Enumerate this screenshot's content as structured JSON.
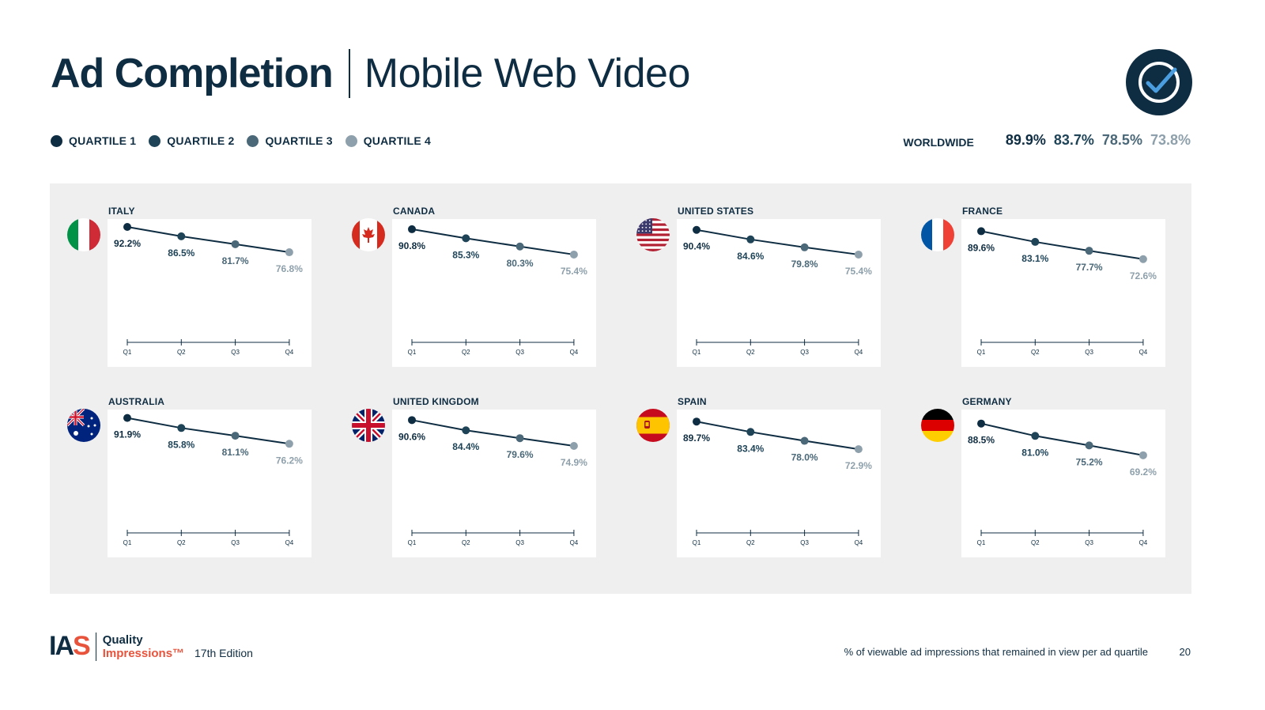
{
  "header": {
    "title_main": "Ad Completion",
    "title_sub": "Mobile Web Video"
  },
  "legend": [
    {
      "label": "QUARTILE 1",
      "color": "#0f2d42"
    },
    {
      "label": "QUARTILE 2",
      "color": "#1f4458"
    },
    {
      "label": "QUARTILE 3",
      "color": "#4b6878"
    },
    {
      "label": "QUARTILE 4",
      "color": "#8ea0ab"
    }
  ],
  "worldwide": {
    "label": "WORLDWIDE",
    "values": [
      "89.9%",
      "83.7%",
      "78.5%",
      "73.8%"
    ]
  },
  "chart_data": [
    {
      "type": "line",
      "title": "ITALY",
      "x": [
        "Q1",
        "Q2",
        "Q3",
        "Q4"
      ],
      "values": [
        92.2,
        86.5,
        81.7,
        76.8
      ],
      "labels": [
        "92.2%",
        "86.5%",
        "81.7%",
        "76.8%"
      ],
      "flag": "italy-flag"
    },
    {
      "type": "line",
      "title": "CANADA",
      "x": [
        "Q1",
        "Q2",
        "Q3",
        "Q4"
      ],
      "values": [
        90.8,
        85.3,
        80.3,
        75.4
      ],
      "labels": [
        "90.8%",
        "85.3%",
        "80.3%",
        "75.4%"
      ],
      "flag": "canada-flag"
    },
    {
      "type": "line",
      "title": "UNITED STATES",
      "x": [
        "Q1",
        "Q2",
        "Q3",
        "Q4"
      ],
      "values": [
        90.4,
        84.6,
        79.8,
        75.4
      ],
      "labels": [
        "90.4%",
        "84.6%",
        "79.8%",
        "75.4%"
      ],
      "flag": "usa-flag"
    },
    {
      "type": "line",
      "title": "FRANCE",
      "x": [
        "Q1",
        "Q2",
        "Q3",
        "Q4"
      ],
      "values": [
        89.6,
        83.1,
        77.7,
        72.6
      ],
      "labels": [
        "89.6%",
        "83.1%",
        "77.7%",
        "72.6%"
      ],
      "flag": "france-flag"
    },
    {
      "type": "line",
      "title": "AUSTRALIA",
      "x": [
        "Q1",
        "Q2",
        "Q3",
        "Q4"
      ],
      "values": [
        91.9,
        85.8,
        81.1,
        76.2
      ],
      "labels": [
        "91.9%",
        "85.8%",
        "81.1%",
        "76.2%"
      ],
      "flag": "australia-flag"
    },
    {
      "type": "line",
      "title": "UNITED KINGDOM",
      "x": [
        "Q1",
        "Q2",
        "Q3",
        "Q4"
      ],
      "values": [
        90.6,
        84.4,
        79.6,
        74.9
      ],
      "labels": [
        "90.6%",
        "84.4%",
        "79.6%",
        "74.9%"
      ],
      "flag": "uk-flag"
    },
    {
      "type": "line",
      "title": "SPAIN",
      "x": [
        "Q1",
        "Q2",
        "Q3",
        "Q4"
      ],
      "values": [
        89.7,
        83.4,
        78.0,
        72.9
      ],
      "labels": [
        "89.7%",
        "83.4%",
        "78.0%",
        "72.9%"
      ],
      "flag": "spain-flag"
    },
    {
      "type": "line",
      "title": "GERMANY",
      "x": [
        "Q1",
        "Q2",
        "Q3",
        "Q4"
      ],
      "values": [
        88.5,
        81.0,
        75.2,
        69.2
      ],
      "labels": [
        "88.5%",
        "81.0%",
        "75.2%",
        "69.2%"
      ],
      "flag": "germany-flag"
    }
  ],
  "footer": {
    "logo_text": "IA",
    "logo_accent": "S",
    "brand_line1": "Quality",
    "brand_line2": "Impressions™",
    "edition": "17th Edition",
    "note": "% of viewable ad impressions that remained in view per ad quartile",
    "page_number": "20"
  }
}
